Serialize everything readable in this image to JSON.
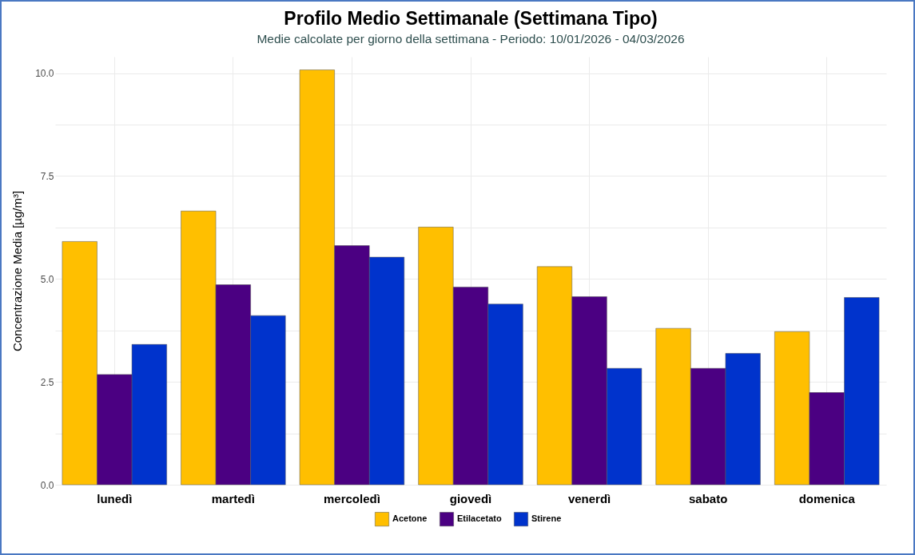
{
  "chart_data": {
    "type": "bar",
    "title": "Profilo Medio Settimanale (Settimana Tipo)",
    "subtitle": "Medie calcolate per giorno della settimana - Periodo: 10/01/2026 - 04/03/2026",
    "ylabel": "Concentrazione Media [µg/m³]",
    "categories": [
      "lunedì",
      "martedì",
      "mercoledì",
      "giovedì",
      "venerdì",
      "sabato",
      "domenica"
    ],
    "series": [
      {
        "name": "Acetone",
        "color": "#ffbf00",
        "values": [
          5.91,
          6.65,
          10.08,
          6.26,
          5.3,
          3.8,
          3.72
        ]
      },
      {
        "name": "Etilacetato",
        "color": "#4b0082",
        "values": [
          2.68,
          4.86,
          5.81,
          4.8,
          4.57,
          2.83,
          2.24
        ]
      },
      {
        "name": "Stirene",
        "color": "#0033cc",
        "values": [
          3.41,
          4.11,
          5.53,
          4.39,
          2.83,
          3.19,
          4.55
        ]
      }
    ],
    "ylim": [
      0,
      10.4
    ],
    "yticks": [
      {
        "value": 0,
        "label": "0.0"
      },
      {
        "value": 1.25,
        "label": null
      },
      {
        "value": 2.5,
        "label": "2.5"
      },
      {
        "value": 3.75,
        "label": null
      },
      {
        "value": 5,
        "label": "5.0"
      },
      {
        "value": 6.25,
        "label": null
      },
      {
        "value": 7.5,
        "label": "7.5"
      },
      {
        "value": 8.75,
        "label": null
      },
      {
        "value": 10,
        "label": "10.0"
      }
    ],
    "grid": true,
    "legend": "bottom"
  }
}
